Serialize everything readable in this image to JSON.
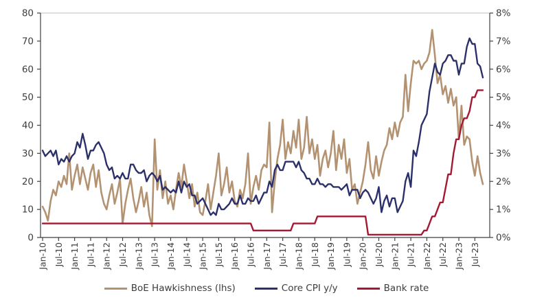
{
  "chart_data": {
    "type": "line",
    "title": "",
    "x_start": "Jan-2010",
    "x_end": "Oct-2023",
    "x_interval": "monthly",
    "x_tick_labels": [
      "Jan-10",
      "Jul-10",
      "Jan-11",
      "Jul-11",
      "Jan-12",
      "Jul-12",
      "Jan-13",
      "Jul-13",
      "Jan-14",
      "Jul-14",
      "Jan-15",
      "Jul-15",
      "Jan-16",
      "Jul-16",
      "Jan-17",
      "Jul-17",
      "Jan-18",
      "Jul-18",
      "Jan-19",
      "Jul-19",
      "Jan-20",
      "Jul-20",
      "Jan-21",
      "Jul-21",
      "Jan-22",
      "Jul-22",
      "Jan-23",
      "Jul-23"
    ],
    "x_ticks_every_n_months": 6,
    "left_axis": {
      "min": 0,
      "max": 80,
      "tick_step": 10,
      "ticks": [
        0,
        10,
        20,
        30,
        40,
        50,
        60,
        70,
        80
      ]
    },
    "right_axis": {
      "min": 0,
      "max": 8,
      "tick_step": 1,
      "tick_labels": [
        "0%",
        "1%",
        "2%",
        "3%",
        "4%",
        "5%",
        "6%",
        "7%",
        "8%"
      ]
    },
    "grid": "top-gridline-only",
    "legend_position": "bottom-center",
    "series": [
      {
        "name": "BoE Hawkishness (lhs)",
        "axis": "left",
        "color": "#b39271",
        "values": [
          11,
          9,
          6,
          13,
          17,
          15,
          20,
          18,
          22,
          19,
          30,
          17,
          22,
          26,
          19,
          25,
          21,
          17,
          23,
          26,
          18,
          24,
          16,
          12,
          10,
          15,
          19,
          12,
          16,
          21,
          5,
          12,
          17,
          21,
          14,
          9,
          13,
          18,
          11,
          16,
          8,
          4,
          35,
          17,
          24,
          14,
          20,
          12,
          15,
          10,
          17,
          23,
          18,
          26,
          20,
          14,
          19,
          11,
          16,
          9,
          8,
          13,
          19,
          10,
          16,
          22,
          30,
          15,
          19,
          25,
          16,
          20,
          13,
          11,
          17,
          14,
          19,
          30,
          12,
          18,
          22,
          17,
          24,
          26,
          25,
          41,
          9,
          20,
          28,
          33,
          42,
          28,
          34,
          30,
          38,
          32,
          42,
          28,
          32,
          43,
          30,
          35,
          28,
          33,
          22,
          28,
          31,
          25,
          30,
          38,
          24,
          33,
          28,
          35,
          23,
          28,
          17,
          19,
          12,
          16,
          20,
          26,
          34,
          24,
          21,
          29,
          22,
          27,
          31,
          33,
          39,
          35,
          41,
          36,
          41,
          43,
          58,
          45,
          55,
          63,
          62,
          63,
          60,
          62,
          63,
          66,
          74,
          65,
          55,
          58,
          51,
          54,
          48,
          53,
          47,
          50,
          35,
          47,
          33,
          36,
          35,
          27,
          22,
          29,
          23,
          19
        ]
      },
      {
        "name": "Core CPI y/y",
        "axis": "right",
        "color": "#2b2f6a",
        "values": [
          3.1,
          2.9,
          3.0,
          3.1,
          2.9,
          3.1,
          2.6,
          2.8,
          2.7,
          2.9,
          2.7,
          2.9,
          3.0,
          3.4,
          3.2,
          3.7,
          3.3,
          2.8,
          3.1,
          3.1,
          3.3,
          3.4,
          3.2,
          3.0,
          2.6,
          2.4,
          2.5,
          2.1,
          2.2,
          2.1,
          2.3,
          2.1,
          2.1,
          2.6,
          2.6,
          2.4,
          2.3,
          2.3,
          2.4,
          2.0,
          2.2,
          2.3,
          2.2,
          2.0,
          2.2,
          1.7,
          1.8,
          1.7,
          1.6,
          1.7,
          1.6,
          2.0,
          1.6,
          2.0,
          1.8,
          1.9,
          1.5,
          1.5,
          1.2,
          1.3,
          1.4,
          1.2,
          1.0,
          0.8,
          0.9,
          0.8,
          1.2,
          1.0,
          1.0,
          1.1,
          1.2,
          1.4,
          1.2,
          1.2,
          1.5,
          1.2,
          1.2,
          1.4,
          1.3,
          1.3,
          1.5,
          1.2,
          1.4,
          1.6,
          1.6,
          2.0,
          1.8,
          2.4,
          2.6,
          2.4,
          2.4,
          2.7,
          2.7,
          2.7,
          2.7,
          2.5,
          2.7,
          2.4,
          2.3,
          2.1,
          2.1,
          1.9,
          1.9,
          2.1,
          1.9,
          1.9,
          1.8,
          1.9,
          1.9,
          1.8,
          1.8,
          1.8,
          1.7,
          1.8,
          1.9,
          1.5,
          1.7,
          1.7,
          1.7,
          1.4,
          1.6,
          1.7,
          1.6,
          1.4,
          1.2,
          1.4,
          1.8,
          0.9,
          1.3,
          1.5,
          1.1,
          1.4,
          1.4,
          0.9,
          1.1,
          1.3,
          2.0,
          2.3,
          1.8,
          3.1,
          2.9,
          3.4,
          4.0,
          4.2,
          4.4,
          5.2,
          5.7,
          6.2,
          5.9,
          5.8,
          6.2,
          6.3,
          6.5,
          6.5,
          6.3,
          6.3,
          5.8,
          6.2,
          6.2,
          6.8,
          7.1,
          6.9,
          6.9,
          6.2,
          6.1,
          5.7
        ]
      },
      {
        "name": "Bank rate",
        "axis": "right",
        "color": "#a31832",
        "values": [
          0.5,
          0.5,
          0.5,
          0.5,
          0.5,
          0.5,
          0.5,
          0.5,
          0.5,
          0.5,
          0.5,
          0.5,
          0.5,
          0.5,
          0.5,
          0.5,
          0.5,
          0.5,
          0.5,
          0.5,
          0.5,
          0.5,
          0.5,
          0.5,
          0.5,
          0.5,
          0.5,
          0.5,
          0.5,
          0.5,
          0.5,
          0.5,
          0.5,
          0.5,
          0.5,
          0.5,
          0.5,
          0.5,
          0.5,
          0.5,
          0.5,
          0.5,
          0.5,
          0.5,
          0.5,
          0.5,
          0.5,
          0.5,
          0.5,
          0.5,
          0.5,
          0.5,
          0.5,
          0.5,
          0.5,
          0.5,
          0.5,
          0.5,
          0.5,
          0.5,
          0.5,
          0.5,
          0.5,
          0.5,
          0.5,
          0.5,
          0.5,
          0.5,
          0.5,
          0.5,
          0.5,
          0.5,
          0.5,
          0.5,
          0.5,
          0.5,
          0.5,
          0.5,
          0.5,
          0.25,
          0.25,
          0.25,
          0.25,
          0.25,
          0.25,
          0.25,
          0.25,
          0.25,
          0.25,
          0.25,
          0.25,
          0.25,
          0.25,
          0.25,
          0.5,
          0.5,
          0.5,
          0.5,
          0.5,
          0.5,
          0.5,
          0.5,
          0.5,
          0.75,
          0.75,
          0.75,
          0.75,
          0.75,
          0.75,
          0.75,
          0.75,
          0.75,
          0.75,
          0.75,
          0.75,
          0.75,
          0.75,
          0.75,
          0.75,
          0.75,
          0.75,
          0.75,
          0.1,
          0.1,
          0.1,
          0.1,
          0.1,
          0.1,
          0.1,
          0.1,
          0.1,
          0.1,
          0.1,
          0.1,
          0.1,
          0.1,
          0.1,
          0.1,
          0.1,
          0.1,
          0.1,
          0.1,
          0.1,
          0.25,
          0.25,
          0.5,
          0.75,
          0.75,
          1.0,
          1.25,
          1.25,
          1.75,
          2.25,
          2.25,
          3.0,
          3.5,
          3.5,
          4.0,
          4.25,
          4.25,
          4.5,
          5.0,
          5.0,
          5.25,
          5.25,
          5.25
        ]
      }
    ]
  },
  "colors": {
    "background": "#ffffff",
    "axis": "#3f3f3f",
    "gridline": "#c9c9c9",
    "text": "#3d3d3d"
  }
}
